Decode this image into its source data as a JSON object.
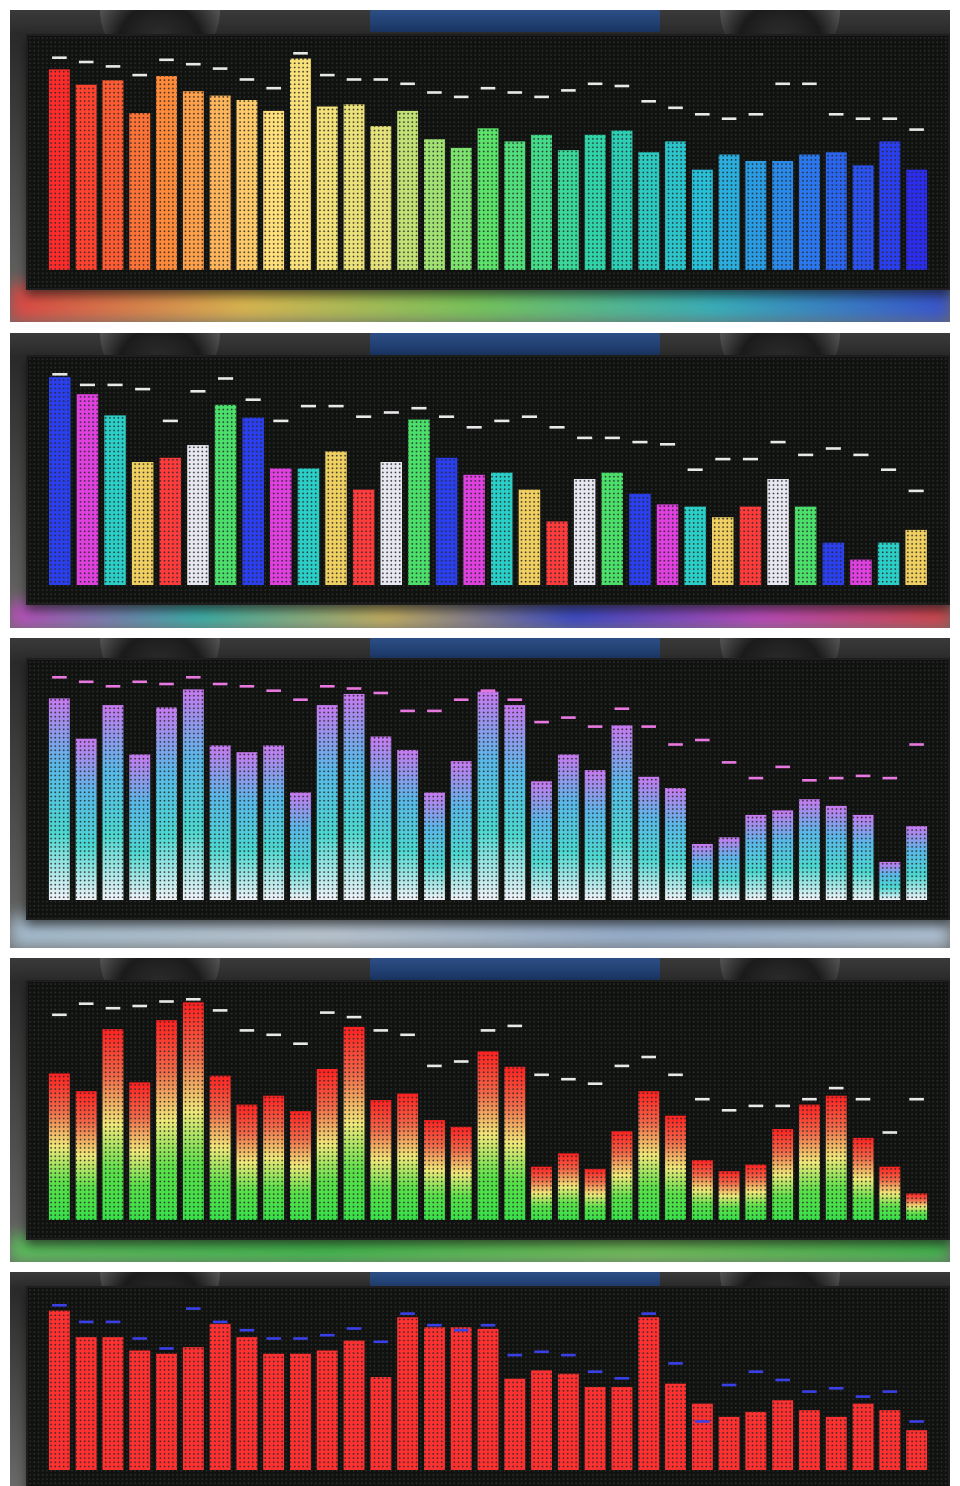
{
  "panels": [
    {
      "id": "spectrum-rainbow",
      "mode": "gradient",
      "stops": [
        "#ff2b2b",
        "#ff8a3a",
        "#ffe07a",
        "#e6e27a",
        "#5be36a",
        "#2fd4a8",
        "#28c0d8",
        "#2a78f0",
        "#2a2cf0"
      ],
      "bar_levels": [
        0.92,
        0.85,
        0.87,
        0.72,
        0.89,
        0.82,
        0.8,
        0.78,
        0.73,
        0.97,
        0.75,
        0.76,
        0.66,
        0.73,
        0.6,
        0.56,
        0.65,
        0.59,
        0.62,
        0.55,
        0.62,
        0.64,
        0.54,
        0.59,
        0.46,
        0.53,
        0.5,
        0.5,
        0.53,
        0.54,
        0.48,
        0.59,
        0.46
      ],
      "peak_levels": [
        0.98,
        0.96,
        0.94,
        0.9,
        0.97,
        0.95,
        0.93,
        0.88,
        0.84,
        1.0,
        0.9,
        0.88,
        0.88,
        0.86,
        0.82,
        0.8,
        0.84,
        0.82,
        0.8,
        0.83,
        0.86,
        0.85,
        0.78,
        0.75,
        0.72,
        0.7,
        0.72,
        0.86,
        0.86,
        0.72,
        0.7,
        0.7,
        0.65
      ],
      "peak_color": "#e8e8e8",
      "glow": [
        "#ff3b3b",
        "#ffd04a",
        "#7ae35a",
        "#2ac6d6",
        "#2a4cf0"
      ]
    },
    {
      "id": "spectrum-multicolor",
      "mode": "per-bar",
      "bar_colors": [
        "#2a3ff0",
        "#e040e0",
        "#2ad0c8",
        "#f0d060",
        "#ff3b3b",
        "#e8e8f0",
        "#4ae06a",
        "#2a3ff0",
        "#e040e0",
        "#2ad0c8",
        "#f0d060",
        "#ff3b3b",
        "#e8e8f0",
        "#4ae06a",
        "#2a3ff0",
        "#e040e0",
        "#2ad0c8",
        "#f0d060",
        "#ff3b3b",
        "#e8e8f0",
        "#4ae06a",
        "#2a3ff0",
        "#e040e0",
        "#2ad0c8",
        "#f0d060",
        "#ff3b3b",
        "#e8e8f0",
        "#4ae06a",
        "#2a3ff0",
        "#e040e0",
        "#2ad0c8",
        "#f0d060"
      ],
      "bar_levels": [
        0.98,
        0.9,
        0.8,
        0.58,
        0.6,
        0.66,
        0.85,
        0.79,
        0.55,
        0.55,
        0.63,
        0.45,
        0.58,
        0.78,
        0.6,
        0.52,
        0.53,
        0.45,
        0.3,
        0.5,
        0.53,
        0.43,
        0.38,
        0.37,
        0.32,
        0.37,
        0.5,
        0.37,
        0.2,
        0.12,
        0.2,
        0.26
      ],
      "peak_levels": [
        1.0,
        0.95,
        0.95,
        0.93,
        0.78,
        0.92,
        0.98,
        0.88,
        0.78,
        0.85,
        0.85,
        0.8,
        0.82,
        0.84,
        0.8,
        0.75,
        0.78,
        0.8,
        0.75,
        0.7,
        0.7,
        0.68,
        0.67,
        0.55,
        0.6,
        0.6,
        0.68,
        0.62,
        0.65,
        0.62,
        0.55,
        0.45
      ],
      "peak_color": "#e8e8e8",
      "glow": [
        "#e040e0",
        "#2ad0c8",
        "#f0d060",
        "#2a3ff0",
        "#e040e0",
        "#ff3b3b"
      ]
    },
    {
      "id": "spectrum-pastel",
      "mode": "vertical",
      "stops": [
        "#f0f2f8",
        "#4ad8d0",
        "#58b8e8",
        "#c878f0"
      ],
      "bar_levels": [
        0.9,
        0.72,
        0.87,
        0.65,
        0.86,
        0.94,
        0.69,
        0.66,
        0.69,
        0.48,
        0.87,
        0.92,
        0.73,
        0.67,
        0.48,
        0.62,
        0.93,
        0.87,
        0.53,
        0.65,
        0.58,
        0.78,
        0.55,
        0.5,
        0.25,
        0.28,
        0.38,
        0.4,
        0.45,
        0.42,
        0.38,
        0.17,
        0.33
      ],
      "peak_levels": [
        1.0,
        0.98,
        0.96,
        0.98,
        0.97,
        1.0,
        0.97,
        0.96,
        0.94,
        0.9,
        0.96,
        0.95,
        0.93,
        0.85,
        0.85,
        0.9,
        0.94,
        0.9,
        0.8,
        0.82,
        0.78,
        0.86,
        0.78,
        0.7,
        0.72,
        0.62,
        0.55,
        0.6,
        0.54,
        0.55,
        0.56,
        0.55,
        0.7
      ],
      "peak_color": "#e878e0",
      "glow": [
        "#b8d8f0",
        "#d8e8f8",
        "#a8c8f0",
        "#c8e0f8"
      ]
    },
    {
      "id": "spectrum-green-red",
      "mode": "vertical",
      "stops": [
        "#38e048",
        "#58e048",
        "#f0e878",
        "#f06848",
        "#ff2020"
      ],
      "bar_levels": [
        0.66,
        0.58,
        0.86,
        0.62,
        0.9,
        0.98,
        0.65,
        0.52,
        0.56,
        0.49,
        0.68,
        0.87,
        0.54,
        0.57,
        0.45,
        0.42,
        0.76,
        0.69,
        0.24,
        0.3,
        0.23,
        0.4,
        0.58,
        0.47,
        0.27,
        0.22,
        0.25,
        0.41,
        0.52,
        0.56,
        0.37,
        0.24,
        0.12
      ],
      "peak_levels": [
        0.93,
        0.98,
        0.96,
        0.97,
        0.99,
        1.0,
        0.95,
        0.86,
        0.84,
        0.8,
        0.94,
        0.92,
        0.86,
        0.84,
        0.7,
        0.72,
        0.86,
        0.88,
        0.66,
        0.64,
        0.62,
        0.7,
        0.74,
        0.66,
        0.55,
        0.5,
        0.52,
        0.52,
        0.55,
        0.6,
        0.55,
        0.4,
        0.55
      ],
      "peak_color": "#e8e8e8",
      "glow": [
        "#5ae05a",
        "#38e048",
        "#7ae85a",
        "#38d848"
      ]
    },
    {
      "id": "spectrum-red",
      "mode": "per-bar",
      "bar_colors": [
        "#ff3030"
      ],
      "bar_levels": [
        0.96,
        0.8,
        0.8,
        0.72,
        0.7,
        0.74,
        0.88,
        0.8,
        0.7,
        0.7,
        0.72,
        0.78,
        0.56,
        0.92,
        0.86,
        0.86,
        0.85,
        0.55,
        0.6,
        0.58,
        0.5,
        0.5,
        0.92,
        0.52,
        0.4,
        0.32,
        0.35,
        0.42,
        0.36,
        0.32,
        0.4,
        0.36,
        0.24
      ],
      "peak_levels": [
        1.0,
        0.9,
        0.9,
        0.8,
        0.74,
        0.98,
        0.9,
        0.85,
        0.8,
        0.8,
        0.82,
        0.86,
        0.78,
        0.95,
        0.88,
        0.85,
        0.88,
        0.7,
        0.72,
        0.7,
        0.6,
        0.56,
        0.95,
        0.65,
        0.3,
        0.52,
        0.6,
        0.55,
        0.48,
        0.5,
        0.45,
        0.48,
        0.3
      ],
      "peak_color": "#3a40e8",
      "glow": [
        "#ff3030"
      ]
    }
  ]
}
